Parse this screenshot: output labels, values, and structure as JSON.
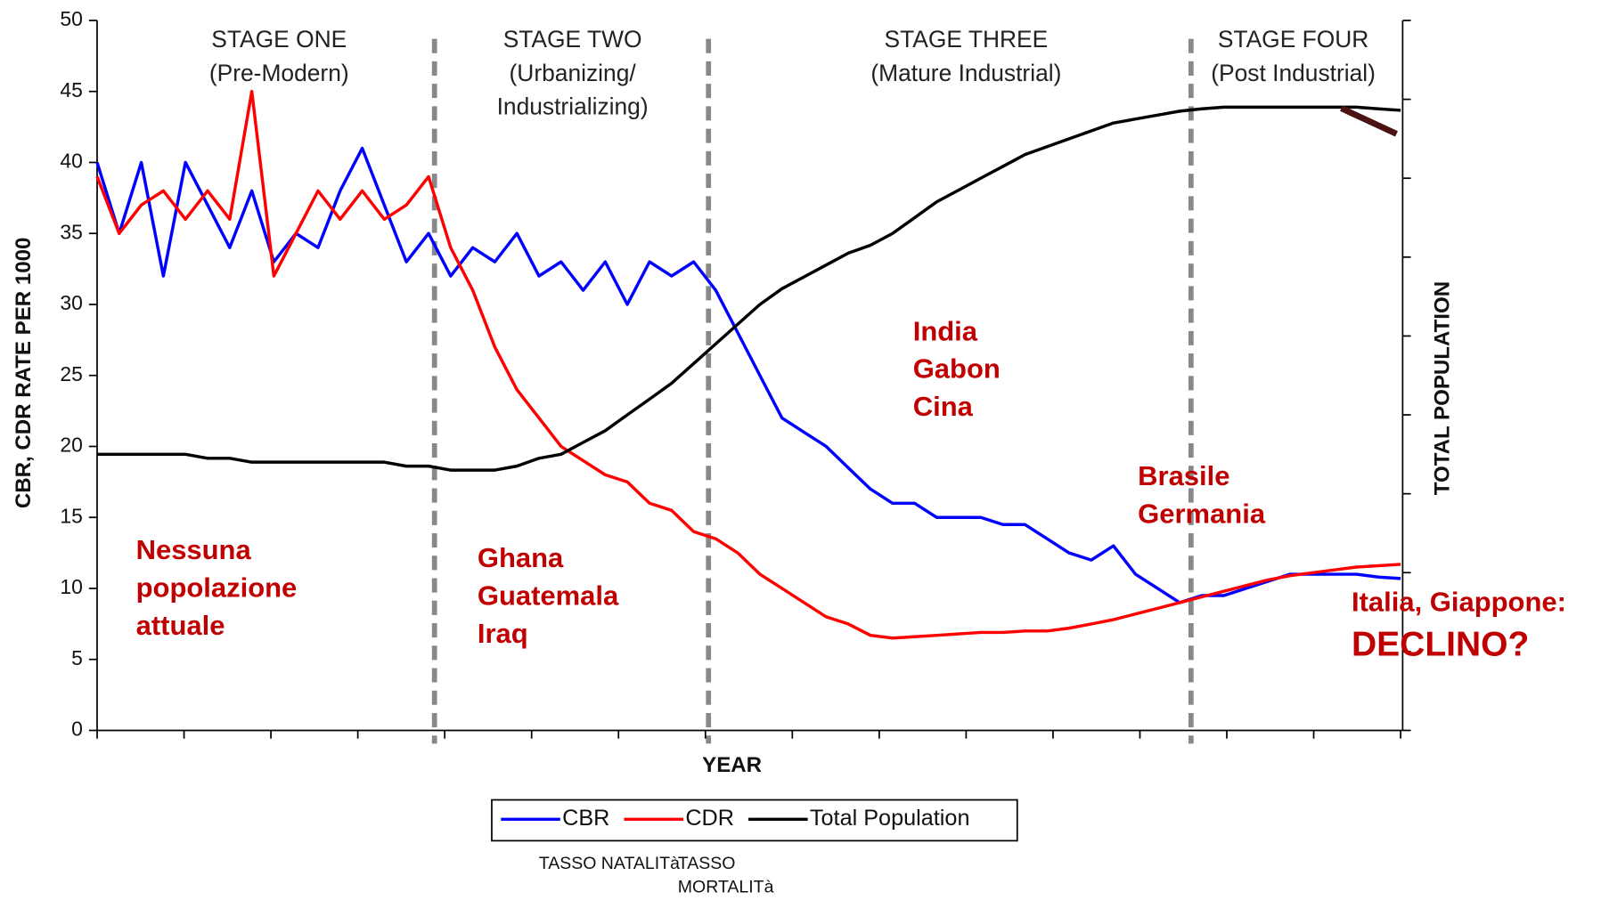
{
  "chart_data": {
    "type": "line",
    "x_label": "YEAR",
    "y_label": "CBR, CDR RATE PER 1000",
    "y2_label": "TOTAL POPULATION",
    "categories": [
      null,
      null,
      null,
      null,
      null,
      null,
      null,
      null,
      null,
      null,
      null,
      null,
      null,
      null,
      null,
      null,
      null,
      null,
      null,
      null,
      null,
      null,
      null,
      null,
      null,
      null,
      null,
      null,
      null,
      null,
      null,
      null,
      null,
      null,
      null,
      null,
      null,
      null,
      null,
      null,
      null,
      null,
      null,
      null,
      null,
      null,
      null,
      null,
      null,
      null,
      null,
      null,
      null,
      null,
      null,
      null,
      null,
      null,
      null,
      null
    ],
    "ylim": [
      0,
      50
    ],
    "yticks": [
      0,
      5,
      10,
      15,
      20,
      25,
      30,
      35,
      40,
      45,
      50
    ],
    "y2lim": [
      0,
      9
    ],
    "y2ticks": [
      0,
      1,
      2,
      3,
      4,
      5,
      6,
      7,
      8,
      9
    ],
    "series": [
      {
        "name": "CBR",
        "color": "#0000ff",
        "values": [
          40,
          35,
          40,
          32,
          40,
          37,
          34,
          38,
          33,
          35,
          34,
          38,
          41,
          37,
          33,
          35,
          32,
          34,
          33,
          35,
          32,
          33,
          31,
          33,
          30,
          33,
          32,
          33,
          31,
          28,
          25,
          22,
          21,
          20,
          18.5,
          17,
          16,
          16,
          15,
          15,
          15,
          14.5,
          14.5,
          13.5,
          12.5,
          12,
          13,
          11,
          10,
          9,
          9.5,
          9.5,
          10,
          10.5,
          11,
          11,
          11,
          11,
          10.8,
          10.7
        ]
      },
      {
        "name": "CDR",
        "color": "#ff0000",
        "values": [
          39,
          35,
          37,
          38,
          36,
          38,
          36,
          45,
          32,
          35,
          38,
          36,
          38,
          36,
          37,
          39,
          34,
          31,
          27,
          24,
          22,
          20,
          19,
          18,
          17.5,
          16,
          15.5,
          14,
          13.5,
          12.5,
          11,
          10,
          9,
          8,
          7.5,
          6.7,
          6.5,
          6.6,
          6.7,
          6.8,
          6.9,
          6.9,
          7,
          7,
          7.2,
          7.5,
          7.8,
          8.2,
          8.6,
          9,
          9.4,
          9.8,
          10.2,
          10.6,
          10.9,
          11.1,
          11.3,
          11.5,
          11.6,
          11.7
        ]
      },
      {
        "name": "Total Population",
        "color": "#000000",
        "axis": "y2",
        "values": [
          3.5,
          3.5,
          3.5,
          3.5,
          3.5,
          3.45,
          3.45,
          3.4,
          3.4,
          3.4,
          3.4,
          3.4,
          3.4,
          3.4,
          3.35,
          3.35,
          3.3,
          3.3,
          3.3,
          3.35,
          3.45,
          3.5,
          3.65,
          3.8,
          4.0,
          4.2,
          4.4,
          4.65,
          4.9,
          5.15,
          5.4,
          5.6,
          5.75,
          5.9,
          6.05,
          6.15,
          6.3,
          6.5,
          6.7,
          6.85,
          7.0,
          7.15,
          7.3,
          7.4,
          7.5,
          7.6,
          7.7,
          7.75,
          7.8,
          7.85,
          7.88,
          7.9,
          7.9,
          7.9,
          7.9,
          7.9,
          7.9,
          7.9,
          7.88,
          7.86
        ]
      }
    ],
    "stages": [
      [
        "STAGE ONE",
        "(Pre-Modern)"
      ],
      [
        "STAGE TWO",
        "(Urbanizing/",
        "Industrializing)"
      ],
      [
        "STAGE THREE",
        "(Mature Industrial)"
      ],
      [
        "STAGE FOUR",
        "(Post Industrial)"
      ]
    ],
    "countries": [
      [
        "Nessuna",
        "popolazione",
        "attuale"
      ],
      [
        "Ghana",
        "Guatemala",
        "Iraq"
      ],
      [
        "India",
        "Gabon",
        "Cina"
      ],
      [
        "Brasile",
        "Germania"
      ],
      [
        "Italia, Giappone:",
        "DECLINO?"
      ]
    ],
    "notes": [
      [
        "TASSO NATALITà"
      ],
      [
        "TASSO",
        "MORTALITà"
      ]
    ]
  }
}
